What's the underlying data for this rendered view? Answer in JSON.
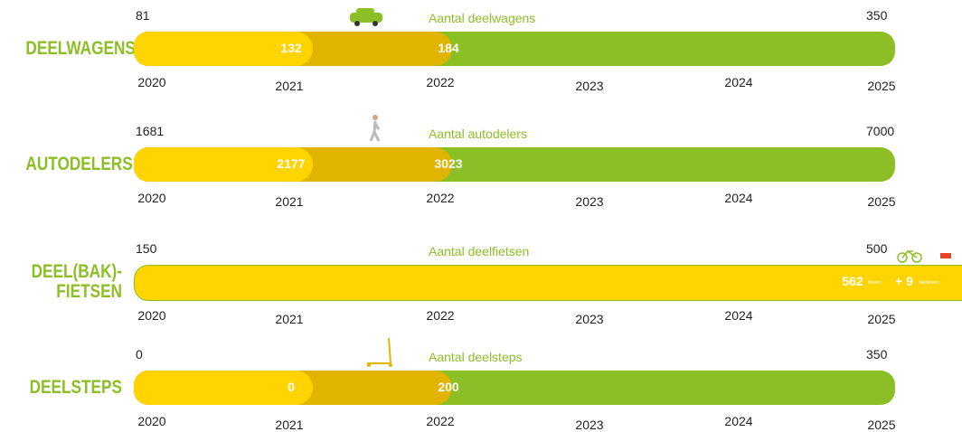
{
  "years": [
    2020,
    2021,
    2022,
    2023,
    2024,
    2025
  ],
  "rows": [
    {
      "label": [
        "DEELWAGENS"
      ],
      "start": 81,
      "target": 350,
      "caption": "Aantal deelwagens",
      "milestones": [
        132,
        184
      ]
    },
    {
      "label": [
        "AUTODELERS"
      ],
      "start": 1681,
      "target": 7000,
      "caption": "Aantal autodelers",
      "milestones": [
        2177,
        3023
      ]
    },
    {
      "label": [
        "DEEL(BAK)-",
        "FIETSEN"
      ],
      "start": 150,
      "target": 500,
      "caption": "Aantal deelfietsen",
      "milestones": [
        562,
        "fietsen",
        "+ 9",
        "bakfietsen"
      ]
    },
    {
      "label": [
        "DEELSTEPS"
      ],
      "start": 0,
      "target": 350,
      "caption": "Aantal deelsteps",
      "milestones": [
        0,
        200
      ]
    }
  ]
}
